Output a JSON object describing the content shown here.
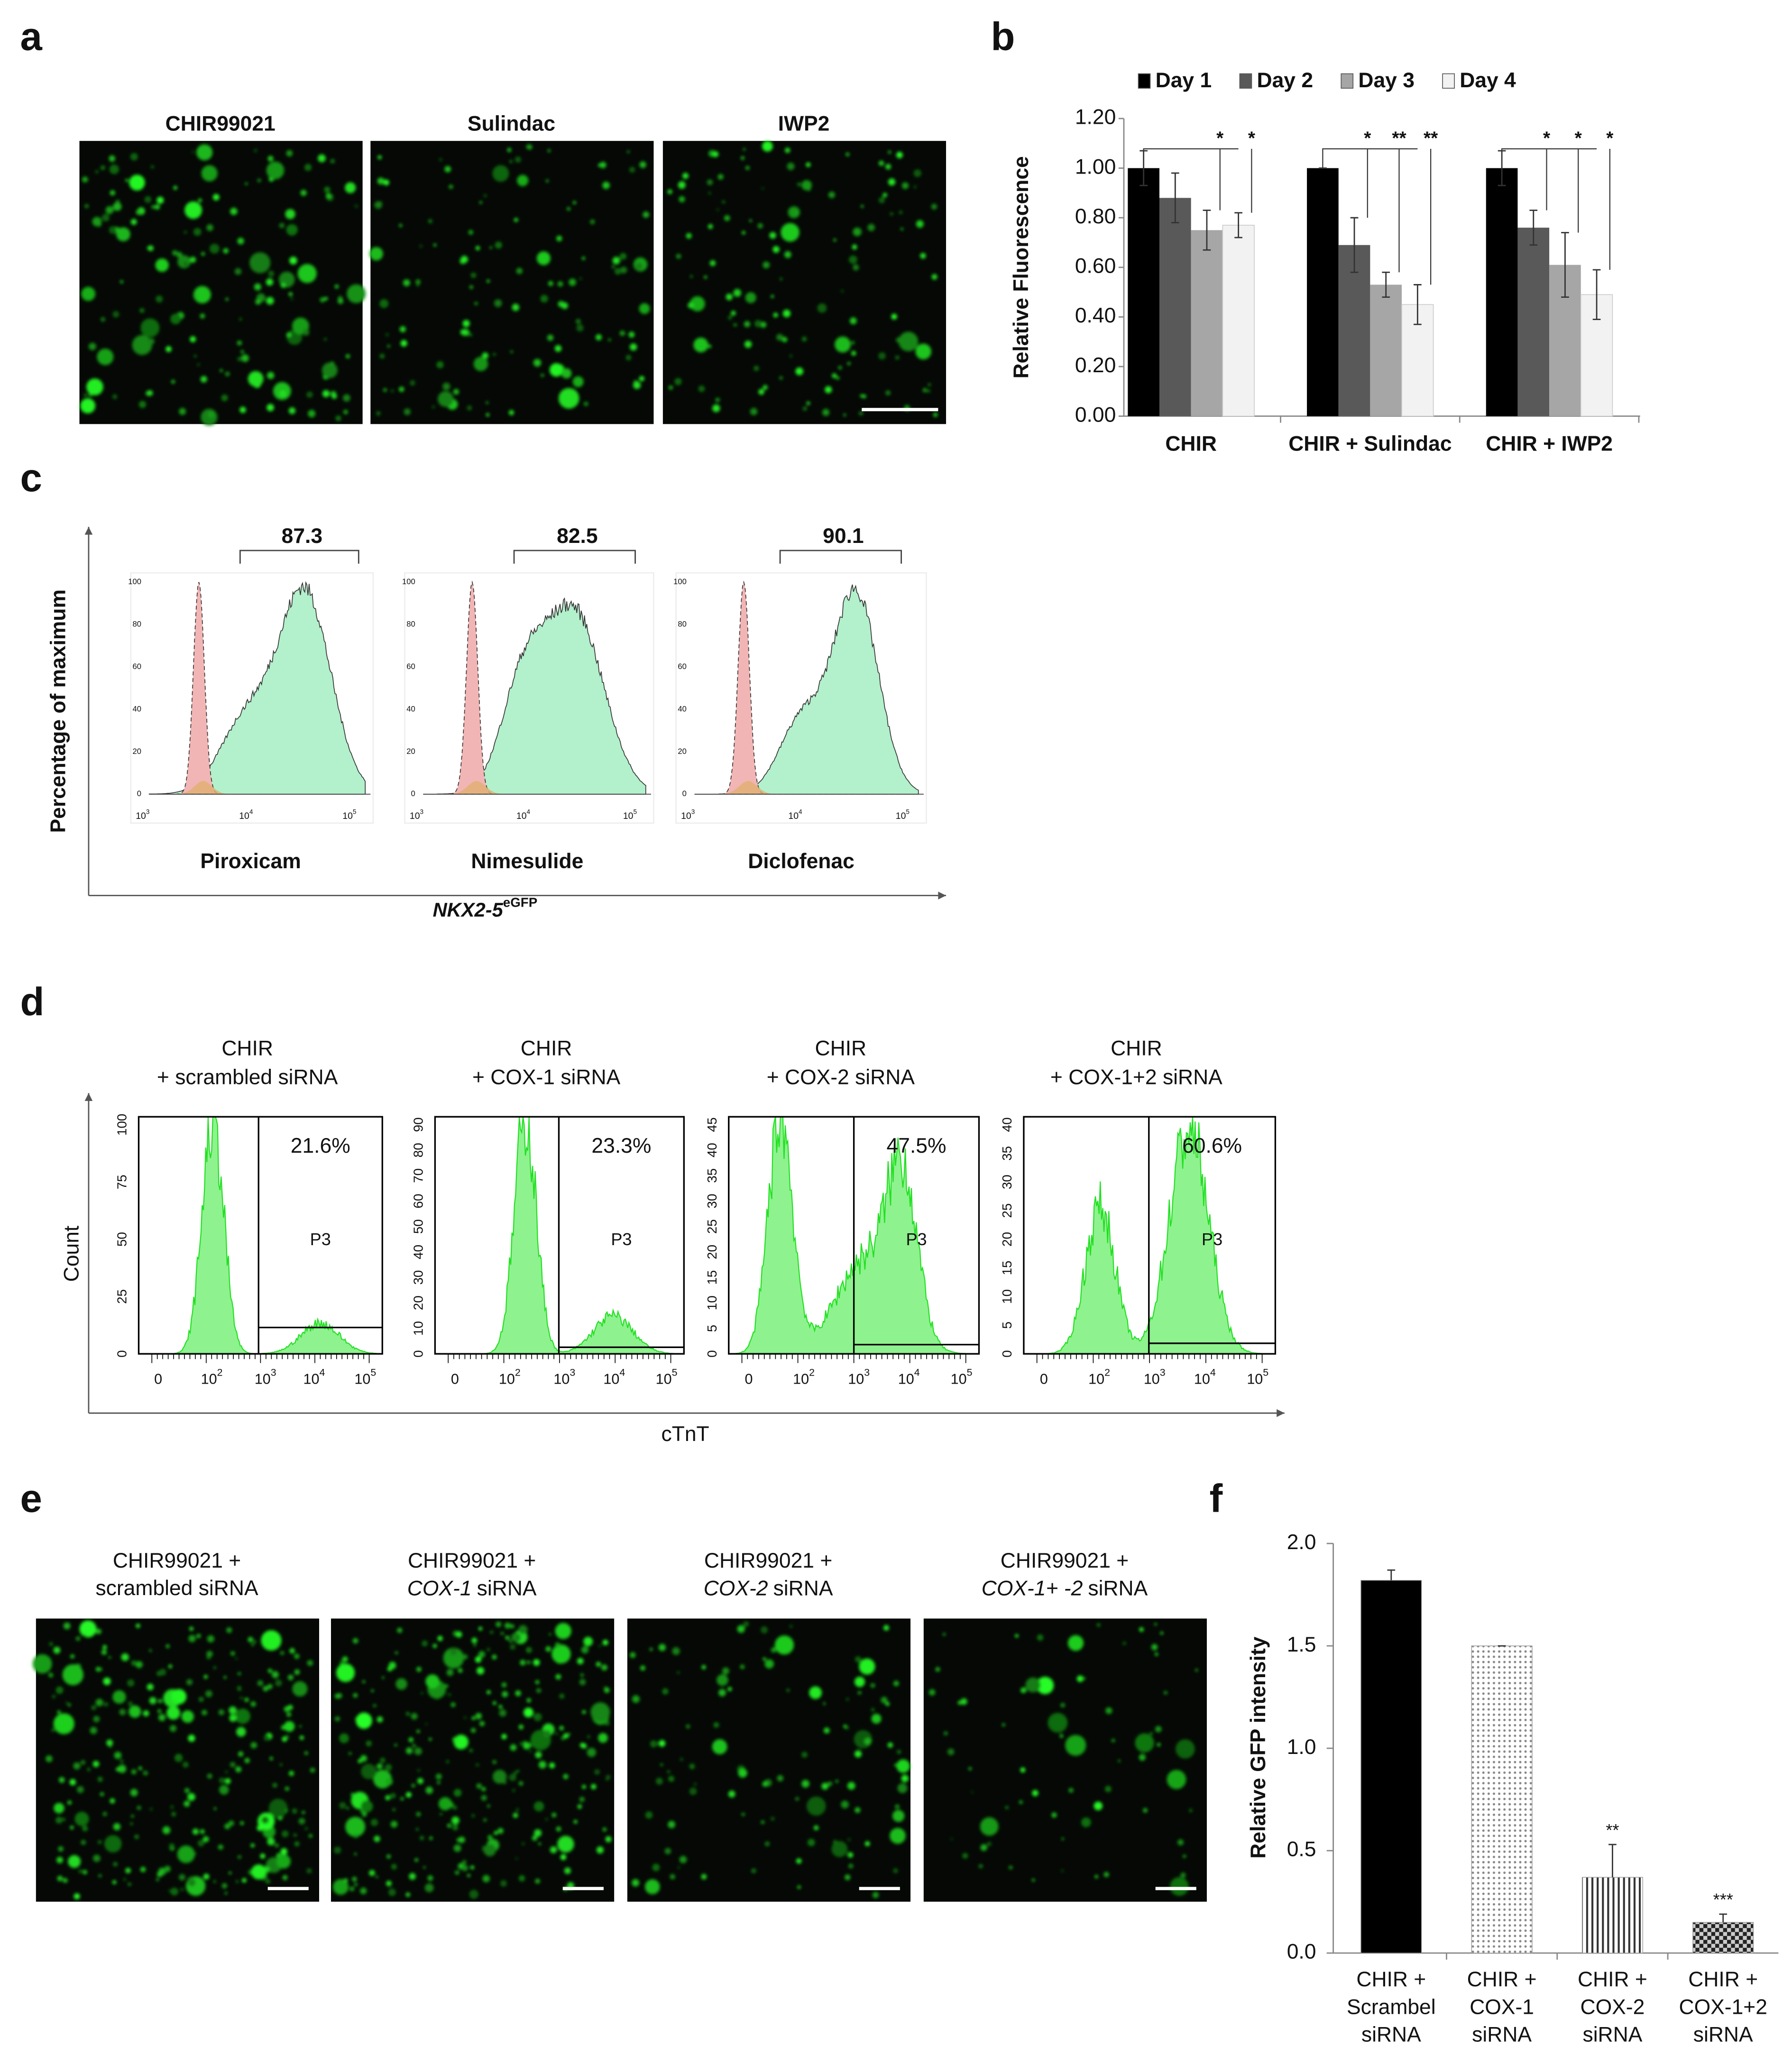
{
  "panel_labels": [
    "a",
    "b",
    "c",
    "d",
    "e",
    "f"
  ],
  "panel_a": {
    "labels": [
      "CHIR99021",
      "Sulindac",
      "IWP2"
    ]
  },
  "panel_c": {
    "ylabel": "Percentage of maximum",
    "xlabel": "NKX2-5",
    "xlabel_sup": "eGFP",
    "yticks": [
      "0",
      "20",
      "40",
      "60",
      "80",
      "100"
    ],
    "xticks": [
      {
        "base": "10",
        "exp": "3"
      },
      {
        "base": "10",
        "exp": "4"
      },
      {
        "base": "10",
        "exp": "5"
      }
    ],
    "plots": [
      {
        "name": "Piroxicam",
        "gate": "87.3"
      },
      {
        "name": "Nimesulide",
        "gate": "82.5"
      },
      {
        "name": "Diclofenac",
        "gate": "90.1"
      }
    ]
  },
  "panel_d": {
    "ylabel": "Count",
    "xlabel": "cTnT",
    "xticks": [
      {
        "base": "0",
        "exp": null
      },
      {
        "base": "10",
        "exp": "2"
      },
      {
        "base": "10",
        "exp": "3"
      },
      {
        "base": "10",
        "exp": "4"
      },
      {
        "base": "10",
        "exp": "5"
      }
    ],
    "plots": [
      {
        "title": [
          "CHIR",
          "+ scrambled siRNA"
        ],
        "percent": "21.6%",
        "gate": "P3",
        "yticks": [
          "0",
          "25",
          "50",
          "75",
          "100"
        ]
      },
      {
        "title": [
          "CHIR",
          "+ COX-1 siRNA"
        ],
        "percent": "23.3%",
        "gate": "P3",
        "yticks": [
          "0",
          "10",
          "20",
          "30",
          "40",
          "50",
          "60",
          "70",
          "80",
          "90"
        ]
      },
      {
        "title": [
          "CHIR",
          "+ COX-2 siRNA"
        ],
        "percent": "47.5%",
        "gate": "P3",
        "yticks": [
          "0",
          "5",
          "10",
          "15",
          "20",
          "25",
          "30",
          "35",
          "40",
          "45"
        ]
      },
      {
        "title": [
          "CHIR",
          "+ COX-1+2 siRNA"
        ],
        "percent": "60.6%",
        "gate": "P3",
        "yticks": [
          "0",
          "5",
          "10",
          "15",
          "20",
          "25",
          "30",
          "35",
          "40"
        ]
      }
    ]
  },
  "panel_e": {
    "labels": [
      {
        "line1": "CHIR99021 +",
        "line2": "scrambled siRNA"
      },
      {
        "line1": "CHIR99021 +",
        "gene": "COX-1",
        "suffix": "siRNA"
      },
      {
        "line1": "CHIR99021 +",
        "gene": "COX-2",
        "suffix": "siRNA"
      },
      {
        "line1": "CHIR99021 +",
        "gene": "COX-1+ -2",
        "suffix": "siRNA"
      }
    ]
  },
  "chart_data": [
    {
      "type": "bar",
      "ylabel": "Relative Fluorescence",
      "categories": [
        "CHIR",
        "CHIR + Sulindac",
        "CHIR + IWP2"
      ],
      "series": [
        {
          "name": "Day 1",
          "color": "#000000",
          "values": [
            1.0,
            1.0,
            1.0
          ],
          "errors": [
            0.07,
            0,
            0.07
          ]
        },
        {
          "name": "Day 2",
          "color": "#595959",
          "values": [
            0.88,
            0.69,
            0.76
          ],
          "errors": [
            0.1,
            0.11,
            0.07
          ]
        },
        {
          "name": "Day 3",
          "color": "#a6a6a6",
          "values": [
            0.75,
            0.53,
            0.61
          ],
          "errors": [
            0.08,
            0.05,
            0.13
          ]
        },
        {
          "name": "Day 4",
          "color": "#f2f2f2",
          "values": [
            0.77,
            0.45,
            0.49
          ],
          "errors": [
            0.05,
            0.08,
            0.1
          ]
        }
      ],
      "significance": [
        [
          null,
          null,
          null
        ],
        [
          null,
          "*",
          "*"
        ],
        [
          "*",
          "**",
          "*"
        ],
        [
          "*",
          "**",
          "*"
        ]
      ],
      "ylim": [
        0,
        1.2
      ],
      "yticks": [
        {
          "value": 0,
          "label": "0.00"
        },
        {
          "value": 0.2,
          "label": "0.20"
        },
        {
          "value": 0.4,
          "label": "0.40"
        },
        {
          "value": 0.6,
          "label": "0.60"
        },
        {
          "value": 0.8,
          "label": "0.80"
        },
        {
          "value": 1.0,
          "label": "1.00"
        },
        {
          "value": 1.2,
          "label": "1.20"
        }
      ],
      "legend": "top"
    },
    {
      "type": "bar",
      "ylabel": "Relative GFP intensity",
      "categories": [
        [
          "CHIR +",
          "Scrambel",
          "siRNA"
        ],
        [
          "CHIR +",
          "COX-1",
          "siRNA"
        ],
        [
          "CHIR +",
          "COX-2",
          "siRNA"
        ],
        [
          "CHIR +",
          "COX-1+2",
          "siRNA"
        ]
      ],
      "values": [
        1.82,
        1.5,
        0.37,
        0.15
      ],
      "errors": [
        0.05,
        0,
        0.16,
        0.04
      ],
      "value_labels": [
        null,
        null,
        "**",
        "***"
      ],
      "color": "#000000",
      "patterns": [
        "solid",
        "dots",
        "stripes",
        "checker"
      ],
      "ylim": [
        0,
        2.0
      ],
      "yticks": [
        {
          "value": 0,
          "label": "0.0"
        },
        {
          "value": 0.5,
          "label": "0.5"
        },
        {
          "value": 1.0,
          "label": "1.0"
        },
        {
          "value": 1.5,
          "label": "1.5"
        },
        {
          "value": 2.0,
          "label": "2.0"
        }
      ]
    }
  ]
}
